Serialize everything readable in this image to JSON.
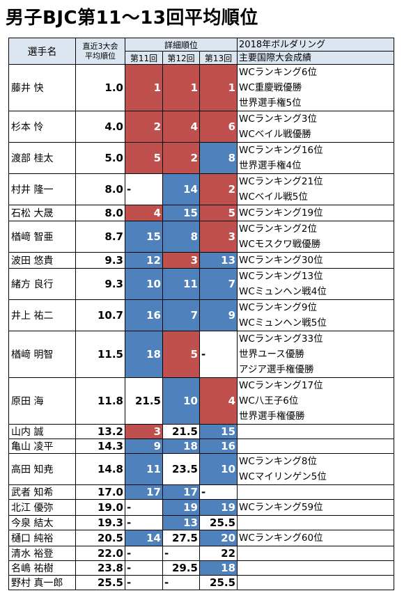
{
  "title": "男子BJC第11〜13回平均順位",
  "header": {
    "name": "選手名",
    "avg_line1": "直近3大会",
    "avg_line2": "平均順位",
    "detail": "詳細順位",
    "ev11": "第11回",
    "ev12": "第12回",
    "ev13": "第13回",
    "res_line1": "2018年ボルダリング",
    "res_line2": "主要国際大会成績"
  },
  "colors": {
    "red": "#c0504d",
    "blue": "#4f81bd",
    "header_bg": "#dce6f1"
  },
  "rows": [
    {
      "name": "藤井 快",
      "avg": "1.0",
      "r": [
        {
          "v": "1",
          "c": "red"
        },
        {
          "v": "1",
          "c": "red"
        },
        {
          "v": "1",
          "c": "red"
        }
      ],
      "res": [
        "WCランキング6位",
        "WC重慶戦優勝",
        "世界選手権5位"
      ]
    },
    {
      "name": "杉本 怜",
      "avg": "4.0",
      "r": [
        {
          "v": "2",
          "c": "red"
        },
        {
          "v": "4",
          "c": "red"
        },
        {
          "v": "6",
          "c": "red"
        }
      ],
      "res": [
        "WCランキング3位",
        "WCベイル戦優勝"
      ]
    },
    {
      "name": "渡部 桂太",
      "avg": "5.0",
      "r": [
        {
          "v": "5",
          "c": "red"
        },
        {
          "v": "2",
          "c": "red"
        },
        {
          "v": "8",
          "c": "blue"
        }
      ],
      "res": [
        "WCランキング16位",
        "世界選手権4位"
      ]
    },
    {
      "name": "村井 隆一",
      "avg": "8.0",
      "r": [
        {
          "v": "-",
          "c": "none"
        },
        {
          "v": "14",
          "c": "blue"
        },
        {
          "v": "2",
          "c": "red"
        }
      ],
      "res": [
        "WCランキング21位",
        "WCベイル戦5位"
      ]
    },
    {
      "name": "石松 大晟",
      "avg": "8.0",
      "r": [
        {
          "v": "4",
          "c": "red"
        },
        {
          "v": "15",
          "c": "blue"
        },
        {
          "v": "5",
          "c": "red"
        }
      ],
      "res": [
        "WCランキング19位"
      ]
    },
    {
      "name": "楢﨑 智亜",
      "avg": "8.7",
      "r": [
        {
          "v": "15",
          "c": "blue"
        },
        {
          "v": "8",
          "c": "blue"
        },
        {
          "v": "3",
          "c": "red"
        }
      ],
      "res": [
        "WCランキング2位",
        "WCモスクワ戦優勝"
      ]
    },
    {
      "name": "波田 悠貴",
      "avg": "9.3",
      "r": [
        {
          "v": "12",
          "c": "blue"
        },
        {
          "v": "3",
          "c": "red"
        },
        {
          "v": "13",
          "c": "blue"
        }
      ],
      "res": [
        "WCランキング30位"
      ]
    },
    {
      "name": "緒方 良行",
      "avg": "9.3",
      "r": [
        {
          "v": "10",
          "c": "blue"
        },
        {
          "v": "11",
          "c": "blue"
        },
        {
          "v": "7",
          "c": "blue"
        }
      ],
      "res": [
        "WCランキング13位",
        "WCミュンヘン戦4位"
      ]
    },
    {
      "name": "井上 祐二",
      "avg": "10.7",
      "r": [
        {
          "v": "16",
          "c": "blue"
        },
        {
          "v": "7",
          "c": "blue"
        },
        {
          "v": "9",
          "c": "blue"
        }
      ],
      "res": [
        "WCランキング9位",
        "WCミュンヘン戦5位"
      ]
    },
    {
      "name": "楢﨑 明智",
      "avg": "11.5",
      "r": [
        {
          "v": "18",
          "c": "blue"
        },
        {
          "v": "5",
          "c": "red"
        },
        {
          "v": "-",
          "c": "none"
        }
      ],
      "res": [
        "WCランキング33位",
        "世界ユース優勝",
        "アジア選手権優勝"
      ]
    },
    {
      "name": "原田 海",
      "avg": "11.8",
      "r": [
        {
          "v": "21.5",
          "c": "none"
        },
        {
          "v": "10",
          "c": "blue"
        },
        {
          "v": "4",
          "c": "red"
        }
      ],
      "res": [
        "WCランキング17位",
        "WC八王子6位",
        "世界選手権優勝"
      ]
    },
    {
      "name": "山内 誠",
      "avg": "13.2",
      "r": [
        {
          "v": "3",
          "c": "red"
        },
        {
          "v": "21.5",
          "c": "none"
        },
        {
          "v": "15",
          "c": "blue"
        }
      ],
      "res": []
    },
    {
      "name": "亀山 凌平",
      "avg": "14.3",
      "r": [
        {
          "v": "9",
          "c": "blue"
        },
        {
          "v": "18",
          "c": "blue"
        },
        {
          "v": "16",
          "c": "blue"
        }
      ],
      "res": []
    },
    {
      "name": "高田 知尭",
      "avg": "14.8",
      "r": [
        {
          "v": "11",
          "c": "blue"
        },
        {
          "v": "23.5",
          "c": "none"
        },
        {
          "v": "10",
          "c": "blue"
        }
      ],
      "res": [
        "WCランキング8位",
        "WCマイリンゲン5位"
      ]
    },
    {
      "name": "武者 知希",
      "avg": "17.0",
      "r": [
        {
          "v": "17",
          "c": "blue"
        },
        {
          "v": "17",
          "c": "blue"
        },
        {
          "v": "-",
          "c": "none"
        }
      ],
      "res": []
    },
    {
      "name": "北江 優弥",
      "avg": "19.0",
      "r": [
        {
          "v": "-",
          "c": "none"
        },
        {
          "v": "19",
          "c": "blue"
        },
        {
          "v": "19",
          "c": "blue"
        }
      ],
      "res": [
        "WCランキング59位"
      ]
    },
    {
      "name": "今泉 結太",
      "avg": "19.3",
      "r": [
        {
          "v": "-",
          "c": "none"
        },
        {
          "v": "13",
          "c": "blue"
        },
        {
          "v": "25.5",
          "c": "none"
        }
      ],
      "res": []
    },
    {
      "name": "樋口 純裕",
      "avg": "20.5",
      "r": [
        {
          "v": "14",
          "c": "blue"
        },
        {
          "v": "27.5",
          "c": "none"
        },
        {
          "v": "20",
          "c": "blue"
        }
      ],
      "res": [
        "WCランキング60位"
      ]
    },
    {
      "name": "清水 裕登",
      "avg": "22.0",
      "r": [
        {
          "v": "-",
          "c": "none"
        },
        {
          "v": "-",
          "c": "none"
        },
        {
          "v": "22",
          "c": "none"
        }
      ],
      "res": []
    },
    {
      "name": "名嶋 祐樹",
      "avg": "23.8",
      "r": [
        {
          "v": "-",
          "c": "none"
        },
        {
          "v": "29.5",
          "c": "none"
        },
        {
          "v": "18",
          "c": "blue"
        }
      ],
      "res": []
    },
    {
      "name": "野村 真一郎",
      "avg": "25.5",
      "r": [
        {
          "v": "-",
          "c": "none"
        },
        {
          "v": "-",
          "c": "none"
        },
        {
          "v": "25.5",
          "c": "none"
        }
      ],
      "res": []
    }
  ]
}
